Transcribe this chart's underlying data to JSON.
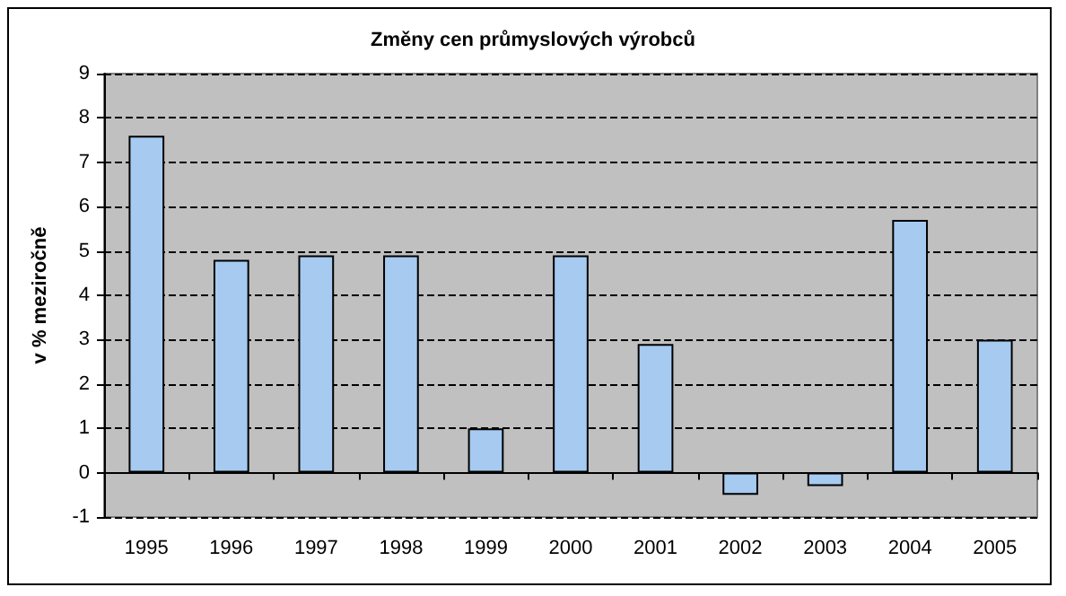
{
  "chart_data": {
    "type": "bar",
    "title": "Změny cen průmyslových výrobců",
    "ylabel": "v % meziročně",
    "categories": [
      "1995",
      "1996",
      "1997",
      "1998",
      "1999",
      "2000",
      "2001",
      "2002",
      "2003",
      "2004",
      "2005"
    ],
    "values": [
      7.6,
      4.8,
      4.9,
      4.9,
      1.0,
      4.9,
      2.9,
      -0.5,
      -0.3,
      5.7,
      3.0
    ],
    "color": "#a6caf0",
    "ylim": [
      -1,
      9
    ],
    "yticks": [
      -1,
      0,
      1,
      2,
      3,
      4,
      5,
      6,
      7,
      8,
      9
    ],
    "grid": "y"
  }
}
